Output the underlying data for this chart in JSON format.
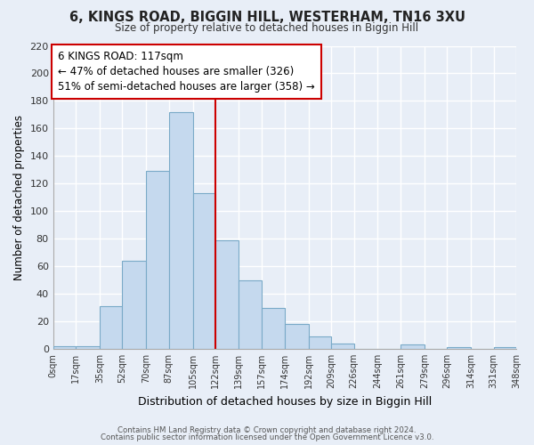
{
  "title": "6, KINGS ROAD, BIGGIN HILL, WESTERHAM, TN16 3XU",
  "subtitle": "Size of property relative to detached houses in Biggin Hill",
  "xlabel": "Distribution of detached houses by size in Biggin Hill",
  "ylabel": "Number of detached properties",
  "bin_edges": [
    0,
    17,
    35,
    52,
    70,
    87,
    105,
    122,
    139,
    157,
    174,
    192,
    209,
    226,
    244,
    261,
    279,
    296,
    314,
    331,
    348
  ],
  "bar_heights": [
    2,
    2,
    31,
    64,
    129,
    172,
    113,
    79,
    50,
    30,
    18,
    9,
    4,
    0,
    0,
    3,
    0,
    1,
    0,
    1
  ],
  "tick_labels": [
    "0sqm",
    "17sqm",
    "35sqm",
    "52sqm",
    "70sqm",
    "87sqm",
    "105sqm",
    "122sqm",
    "139sqm",
    "157sqm",
    "174sqm",
    "192sqm",
    "209sqm",
    "226sqm",
    "244sqm",
    "261sqm",
    "279sqm",
    "296sqm",
    "314sqm",
    "331sqm",
    "348sqm"
  ],
  "bar_color": "#c5d9ee",
  "bar_edge_color": "#7aaac8",
  "property_line_x": 122,
  "property_line_color": "#cc0000",
  "annotation_line1": "6 KINGS ROAD: 117sqm",
  "annotation_line2": "← 47% of detached houses are smaller (326)",
  "annotation_line3": "51% of semi-detached houses are larger (358) →",
  "annotation_box_facecolor": "#ffffff",
  "annotation_box_edgecolor": "#cc0000",
  "ylim": [
    0,
    220
  ],
  "yticks": [
    0,
    20,
    40,
    60,
    80,
    100,
    120,
    140,
    160,
    180,
    200,
    220
  ],
  "footer_line1": "Contains HM Land Registry data © Crown copyright and database right 2024.",
  "footer_line2": "Contains public sector information licensed under the Open Government Licence v3.0.",
  "background_color": "#e8eef7",
  "plot_bg_color": "#e8eef7",
  "grid_color": "#ffffff"
}
